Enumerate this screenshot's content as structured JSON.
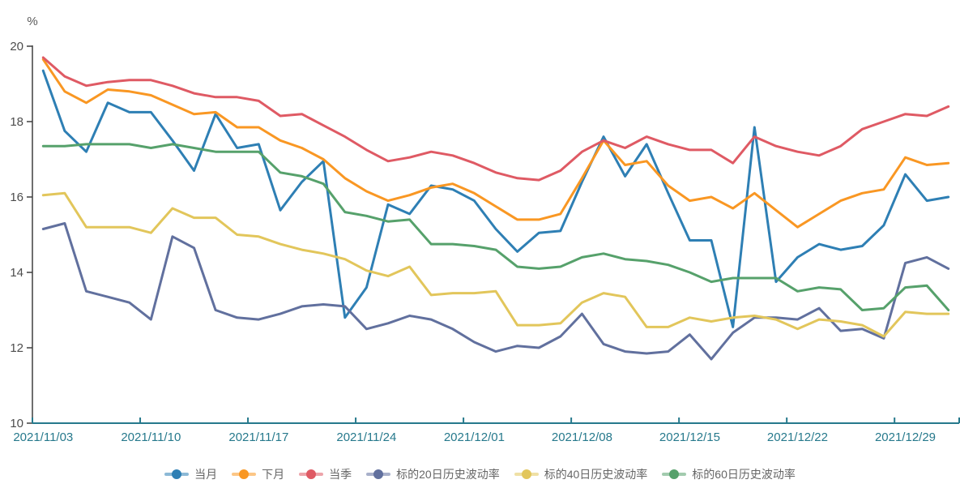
{
  "chart_data": {
    "type": "line",
    "title": "",
    "ylabel": "%",
    "xlabel": "",
    "ylim": [
      10,
      20
    ],
    "yticks": [
      10,
      12,
      14,
      16,
      18,
      20
    ],
    "grid": false,
    "legend_position": "bottom",
    "x_axis_labels": [
      "2021/11/03",
      "2021/11/10",
      "2021/11/17",
      "2021/11/24",
      "2021/12/01",
      "2021/12/08",
      "2021/12/15",
      "2021/12/22",
      "2021/12/29"
    ],
    "categories": [
      "2021/11/03",
      "2021/11/04",
      "2021/11/05",
      "2021/11/08",
      "2021/11/09",
      "2021/11/10",
      "2021/11/11",
      "2021/11/12",
      "2021/11/15",
      "2021/11/16",
      "2021/11/17",
      "2021/11/18",
      "2021/11/19",
      "2021/11/22",
      "2021/11/23",
      "2021/11/24",
      "2021/11/25",
      "2021/11/26",
      "2021/11/29",
      "2021/11/30",
      "2021/12/01",
      "2021/12/02",
      "2021/12/03",
      "2021/12/06",
      "2021/12/07",
      "2021/12/08",
      "2021/12/09",
      "2021/12/10",
      "2021/12/13",
      "2021/12/14",
      "2021/12/15",
      "2021/12/16",
      "2021/12/17",
      "2021/12/20",
      "2021/12/21",
      "2021/12/22",
      "2021/12/23",
      "2021/12/24",
      "2021/12/27",
      "2021/12/28",
      "2021/12/29",
      "2021/12/30",
      "2021/12/31"
    ],
    "series": [
      {
        "name": "当月",
        "color": "#2e7fb4",
        "values": [
          19.35,
          17.75,
          17.2,
          18.5,
          18.25,
          18.25,
          17.5,
          16.7,
          18.2,
          17.3,
          17.4,
          15.65,
          16.4,
          16.95,
          12.8,
          13.6,
          15.8,
          15.55,
          16.3,
          16.2,
          15.9,
          15.15,
          14.55,
          15.05,
          15.1,
          16.4,
          17.6,
          16.55,
          17.4,
          16.1,
          14.85,
          14.85,
          12.55,
          17.85,
          13.75,
          14.4,
          14.75,
          14.6,
          14.7,
          15.25,
          16.6,
          15.9,
          16.0
        ]
      },
      {
        "name": "下月",
        "color": "#f99723",
        "values": [
          19.65,
          18.8,
          18.5,
          18.85,
          18.8,
          18.7,
          18.45,
          18.2,
          18.25,
          17.85,
          17.85,
          17.5,
          17.3,
          17.0,
          16.5,
          16.15,
          15.9,
          16.05,
          16.25,
          16.35,
          16.1,
          15.75,
          15.4,
          15.4,
          15.55,
          16.5,
          17.5,
          16.85,
          16.95,
          16.3,
          15.9,
          16.0,
          15.7,
          16.1,
          15.65,
          15.2,
          15.55,
          15.9,
          16.1,
          16.2,
          17.05,
          16.85,
          16.9
        ]
      },
      {
        "name": "当季",
        "color": "#df5a64",
        "values": [
          19.7,
          19.2,
          18.95,
          19.05,
          19.1,
          19.1,
          18.95,
          18.75,
          18.65,
          18.65,
          18.55,
          18.15,
          18.2,
          17.9,
          17.6,
          17.25,
          16.95,
          17.05,
          17.2,
          17.1,
          16.9,
          16.65,
          16.5,
          16.45,
          16.7,
          17.2,
          17.5,
          17.3,
          17.6,
          17.4,
          17.25,
          17.25,
          16.9,
          17.6,
          17.35,
          17.2,
          17.1,
          17.35,
          17.8,
          18.0,
          18.2,
          18.15,
          18.4
        ]
      },
      {
        "name": "标的20日历史波动率",
        "color": "#61709e",
        "values": [
          15.15,
          15.3,
          13.5,
          13.35,
          13.2,
          12.75,
          14.95,
          14.65,
          13.0,
          12.8,
          12.75,
          12.9,
          13.1,
          13.15,
          13.1,
          12.5,
          12.65,
          12.85,
          12.75,
          12.5,
          12.15,
          11.9,
          12.05,
          12.0,
          12.3,
          12.9,
          12.1,
          11.9,
          11.85,
          11.9,
          12.35,
          11.7,
          12.4,
          12.8,
          12.8,
          12.75,
          13.05,
          12.45,
          12.5,
          12.25,
          14.25,
          14.4,
          14.1
        ]
      },
      {
        "name": "标的40日历史波动率",
        "color": "#e2c65b",
        "values": [
          16.05,
          16.1,
          15.2,
          15.2,
          15.2,
          15.05,
          15.7,
          15.45,
          15.45,
          15.0,
          14.95,
          14.75,
          14.6,
          14.5,
          14.35,
          14.05,
          13.9,
          14.15,
          13.4,
          13.45,
          13.45,
          13.5,
          12.6,
          12.6,
          12.65,
          13.2,
          13.45,
          13.35,
          12.55,
          12.55,
          12.8,
          12.7,
          12.8,
          12.85,
          12.75,
          12.5,
          12.75,
          12.7,
          12.6,
          12.3,
          12.95,
          12.9,
          12.9
        ]
      },
      {
        "name": "标的60日历史波动率",
        "color": "#56a16b",
        "values": [
          17.35,
          17.35,
          17.4,
          17.4,
          17.4,
          17.3,
          17.4,
          17.3,
          17.2,
          17.2,
          17.2,
          16.65,
          16.55,
          16.35,
          15.6,
          15.5,
          15.35,
          15.4,
          14.75,
          14.75,
          14.7,
          14.6,
          14.15,
          14.1,
          14.15,
          14.4,
          14.5,
          14.35,
          14.3,
          14.2,
          14.0,
          13.75,
          13.85,
          13.85,
          13.85,
          13.5,
          13.6,
          13.55,
          13.0,
          13.05,
          13.6,
          13.65,
          13.0
        ]
      }
    ],
    "style": {
      "line_width": 3,
      "x_axis_color": "#26798c",
      "x_label_color": "#26798c",
      "y_axis_color": "#3f3f3f",
      "y_label_color": "#4d4d4d",
      "legend_text_color": "#666666",
      "label_font_size": 15
    }
  }
}
